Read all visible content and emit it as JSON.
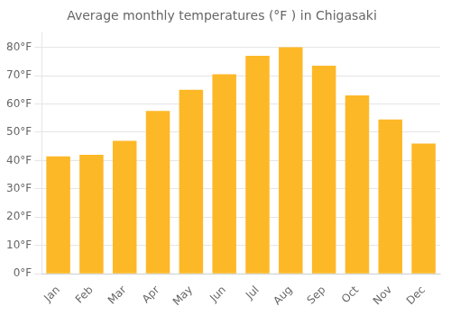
{
  "chart_data": {
    "type": "bar",
    "title": "Average monthly temperatures (°F ) in Chigasaki",
    "categories": [
      "Jan",
      "Feb",
      "Mar",
      "Apr",
      "May",
      "Jun",
      "Jul",
      "Aug",
      "Sep",
      "Oct",
      "Nov",
      "Dec"
    ],
    "values": [
      41.5,
      42.0,
      47.0,
      57.5,
      65.0,
      70.5,
      77.0,
      80.0,
      73.5,
      63.0,
      54.5,
      46.0
    ],
    "color": "#FDB827",
    "ylim": [
      0,
      85
    ],
    "yticks": [
      {
        "value": 0,
        "label": "0°F"
      },
      {
        "value": 10,
        "label": "10°F"
      },
      {
        "value": 20,
        "label": "20°F"
      },
      {
        "value": 30,
        "label": "30°F"
      },
      {
        "value": 40,
        "label": "40°F"
      },
      {
        "value": 50,
        "label": "50°F"
      },
      {
        "value": 60,
        "label": "60°F"
      },
      {
        "value": 70,
        "label": "70°F"
      },
      {
        "value": 80,
        "label": "80°F"
      }
    ],
    "grid": true
  }
}
